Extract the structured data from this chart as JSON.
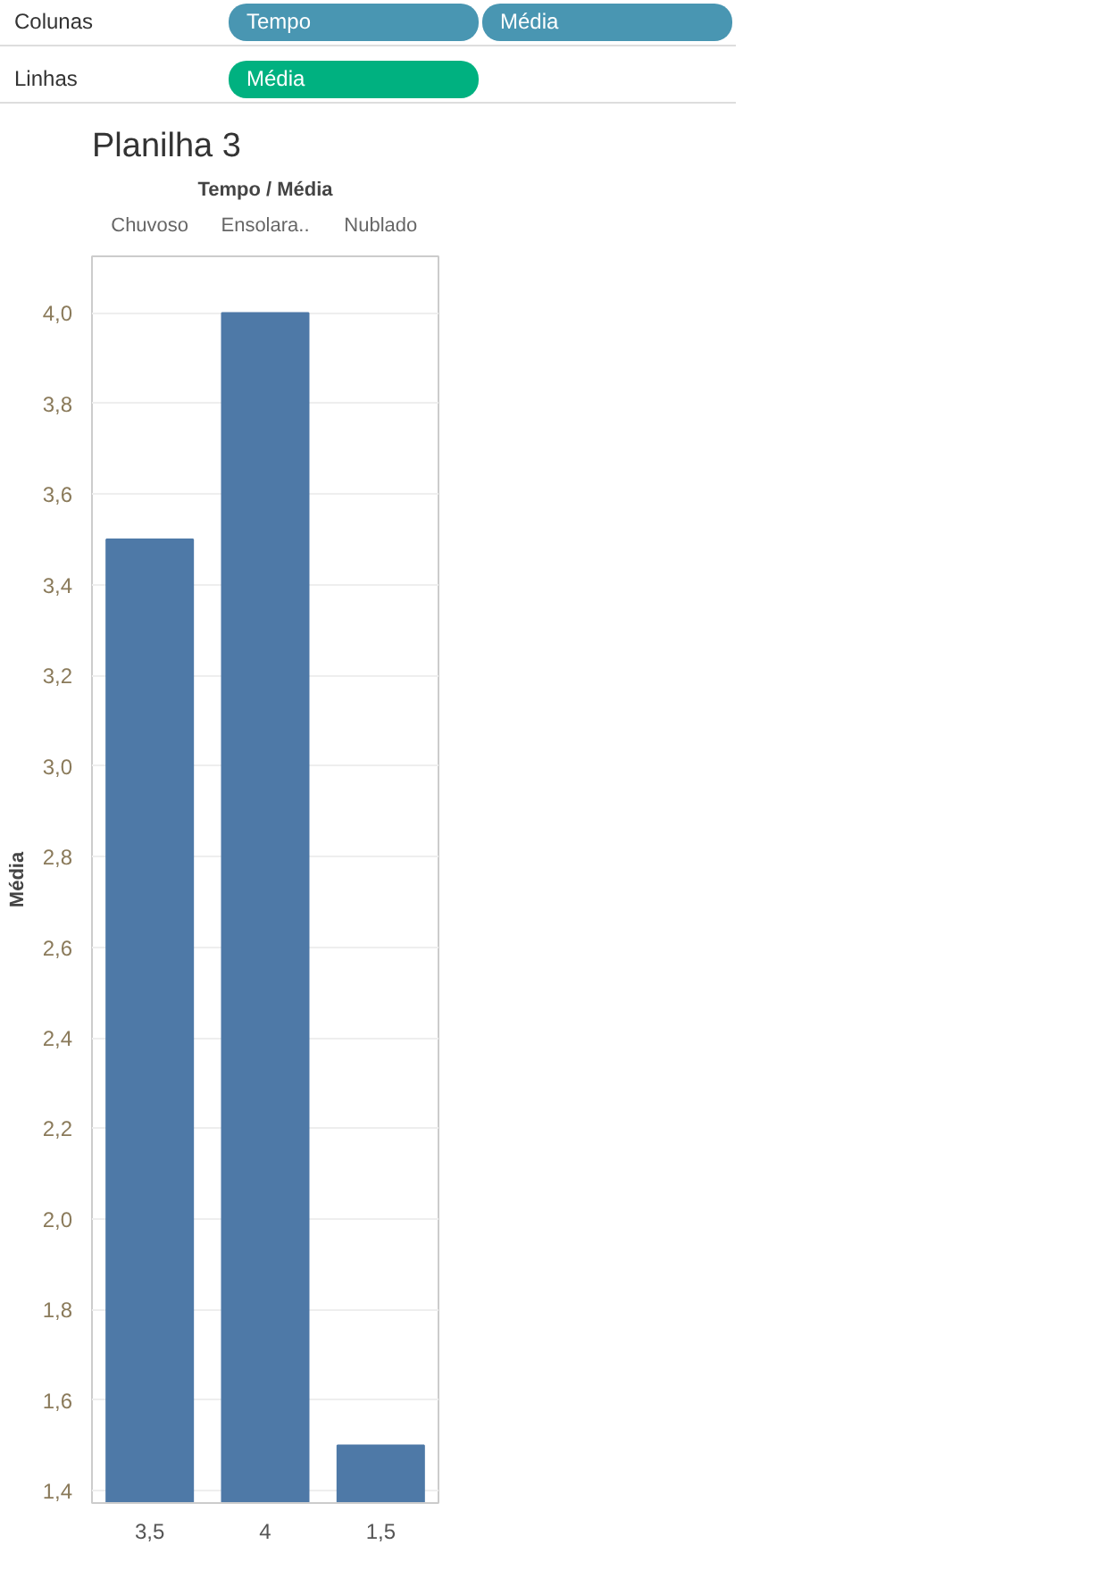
{
  "chart_data": {
    "type": "bar",
    "title": "Planilha 3",
    "xlabel": "Tempo / Média",
    "ylabel": "Média",
    "categories": [
      "Chuvoso",
      "Ensolara..",
      "Nublado"
    ],
    "values": [
      3.5,
      4.0,
      1.5
    ],
    "color": "#4e79a7",
    "value_labels": [
      "3,5",
      "4",
      "1,5"
    ],
    "ylim": [
      1.373,
      4.125
    ],
    "yticks": [
      {
        "value": 1.4,
        "label": "1,4"
      },
      {
        "value": 1.6,
        "label": "1,6"
      },
      {
        "value": 1.8,
        "label": "1,8"
      },
      {
        "value": 2.0,
        "label": "2,0"
      },
      {
        "value": 2.2,
        "label": "2,2"
      },
      {
        "value": 2.4,
        "label": "2,4"
      },
      {
        "value": 2.6,
        "label": "2,6"
      },
      {
        "value": 2.8,
        "label": "2,8"
      },
      {
        "value": 3.0,
        "label": "3,0"
      },
      {
        "value": 3.2,
        "label": "3,2"
      },
      {
        "value": 3.4,
        "label": "3,4"
      },
      {
        "value": 3.6,
        "label": "3,6"
      },
      {
        "value": 3.8,
        "label": "3,8"
      },
      {
        "value": 4.0,
        "label": "4,0"
      }
    ],
    "grid": "y",
    "annotations": [
      "Colunas",
      "Tempo",
      "Média",
      "Linhas",
      "Média"
    ]
  }
}
